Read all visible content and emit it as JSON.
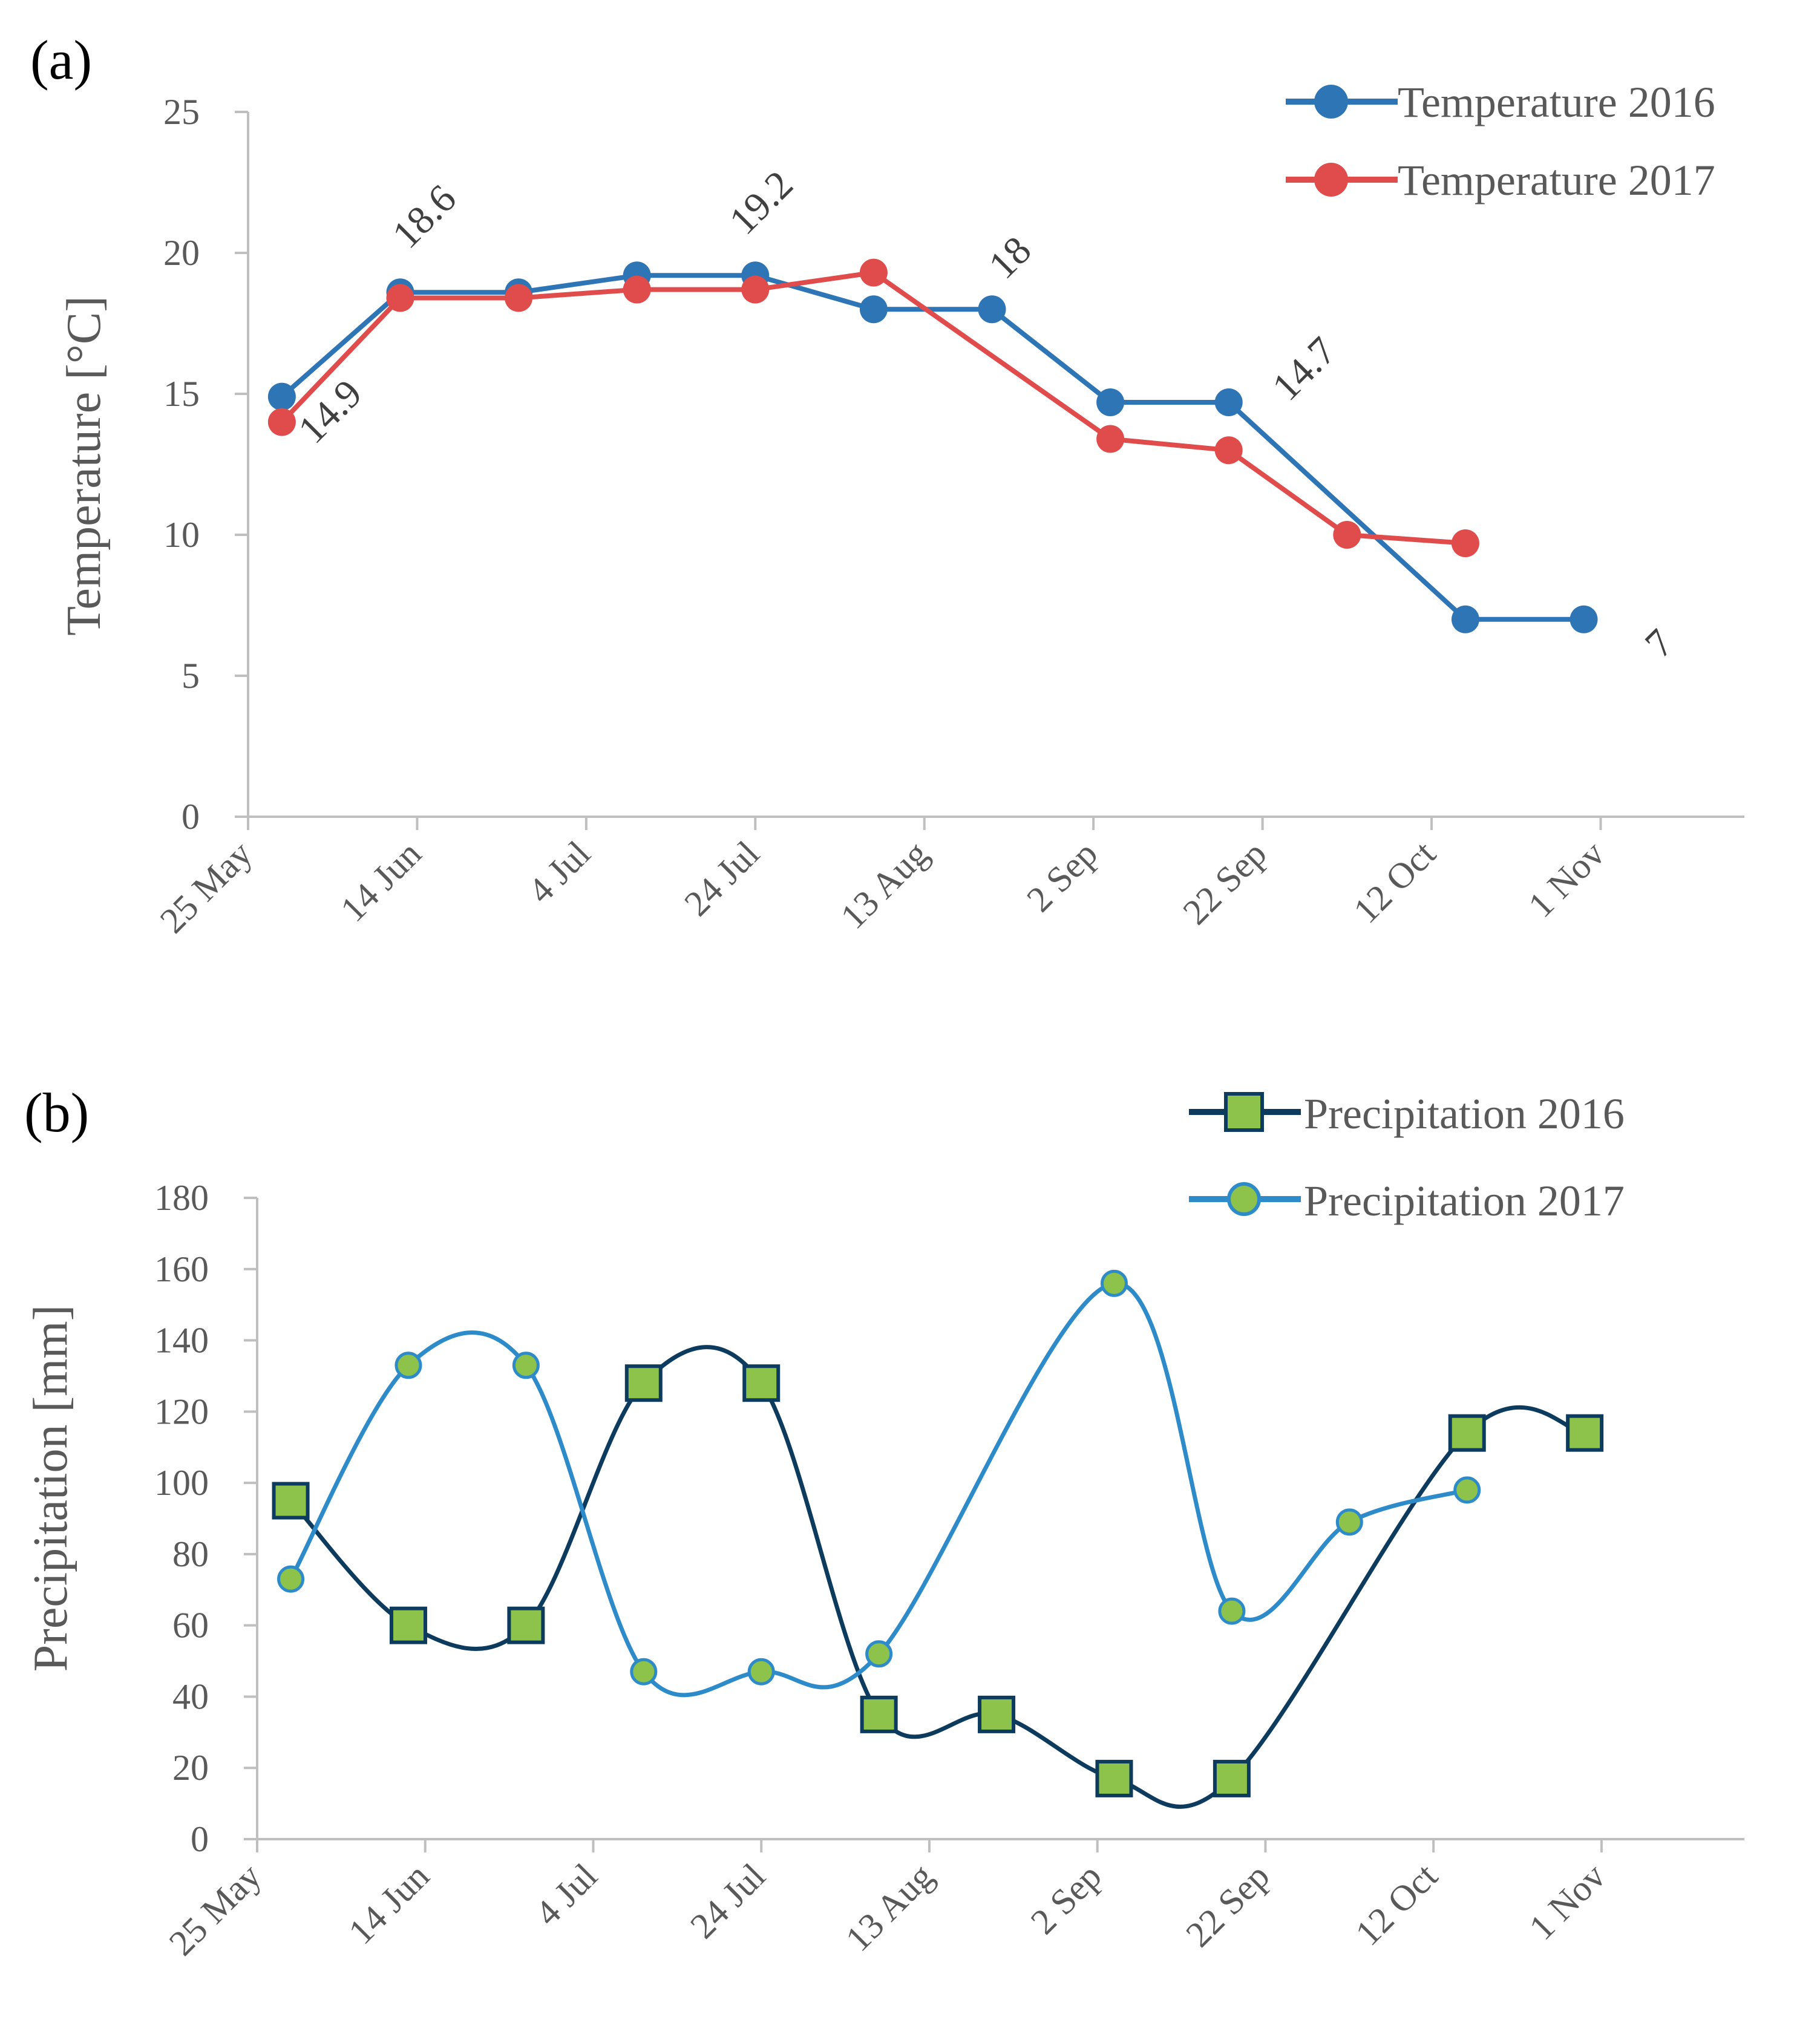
{
  "chart_data": [
    {
      "type": "line",
      "panel_label": "(a)",
      "xlabel": "",
      "ylabel": "Temperature [°C]",
      "x_ticks": [
        "25 May",
        "14 Jun",
        "4 Jul",
        "24 Jul",
        "13 Aug",
        "2 Sep",
        "22 Sep",
        "12 Oct",
        "1 Nov"
      ],
      "x_tick_days": [
        0,
        20,
        40,
        60,
        80,
        100,
        120,
        140,
        160
      ],
      "xlim_days": [
        0,
        177
      ],
      "ylim": [
        0,
        25
      ],
      "y_ticks": [
        "0",
        "5",
        "10",
        "15",
        "20",
        "25"
      ],
      "legend_position": "top-right",
      "series": [
        {
          "name": "Temperature 2016",
          "color": "#2e75b6",
          "marker": "circle",
          "x_days": [
            4,
            18,
            32,
            46,
            60,
            74,
            88,
            102,
            116,
            144,
            158
          ],
          "values": [
            14.9,
            18.6,
            18.6,
            19.2,
            19.2,
            18.0,
            18.0,
            14.7,
            14.7,
            7.0,
            7.0
          ]
        },
        {
          "name": "Temperature 2017",
          "color": "#e04b4b",
          "marker": "circle",
          "x_days": [
            4,
            18,
            32,
            46,
            60,
            74,
            102,
            116,
            130,
            144
          ],
          "values": [
            14.0,
            18.4,
            18.4,
            18.7,
            18.7,
            19.3,
            13.4,
            13.0,
            10.0,
            9.7
          ]
        }
      ],
      "data_labels": [
        {
          "series": 0,
          "index": 0,
          "text": "14.9"
        },
        {
          "series": 0,
          "index": 1,
          "text": "18.6"
        },
        {
          "series": 0,
          "index": 4,
          "text": "19.2"
        },
        {
          "series": 0,
          "index": 6,
          "text": "18"
        },
        {
          "series": 0,
          "index": 8,
          "text": "14.7"
        },
        {
          "series": 0,
          "index": 10,
          "text": "7"
        }
      ]
    },
    {
      "type": "line",
      "panel_label": "(b)",
      "xlabel": "",
      "ylabel": "Precipitation [mm]",
      "x_ticks": [
        "25 May",
        "14 Jun",
        "4 Jul",
        "24 Jul",
        "13 Aug",
        "2 Sep",
        "22 Sep",
        "12 Oct",
        "1 Nov"
      ],
      "x_tick_days": [
        0,
        20,
        40,
        60,
        80,
        100,
        120,
        140,
        160
      ],
      "xlim_days": [
        0,
        177
      ],
      "ylim": [
        0,
        180
      ],
      "y_ticks": [
        "0",
        "20",
        "40",
        "60",
        "80",
        "100",
        "120",
        "140",
        "160",
        "180"
      ],
      "legend_position": "top-right",
      "smooth": true,
      "series": [
        {
          "name": "Precipitation 2016",
          "color": "#0d3b5e",
          "marker": "square",
          "marker_fill": "#8dc34a",
          "x_days": [
            4,
            18,
            32,
            46,
            60,
            74,
            88,
            102,
            116,
            144,
            158
          ],
          "values": [
            95,
            60,
            60,
            128,
            128,
            35,
            35,
            17,
            17,
            114,
            114
          ]
        },
        {
          "name": "Precipitation 2017",
          "color": "#2e8bc9",
          "marker": "circle",
          "marker_fill": "#8dc34a",
          "x_days": [
            4,
            18,
            32,
            46,
            60,
            74,
            102,
            116,
            130,
            144
          ],
          "values": [
            73,
            133,
            133,
            47,
            47,
            52,
            156,
            64,
            89,
            98
          ]
        }
      ]
    }
  ]
}
